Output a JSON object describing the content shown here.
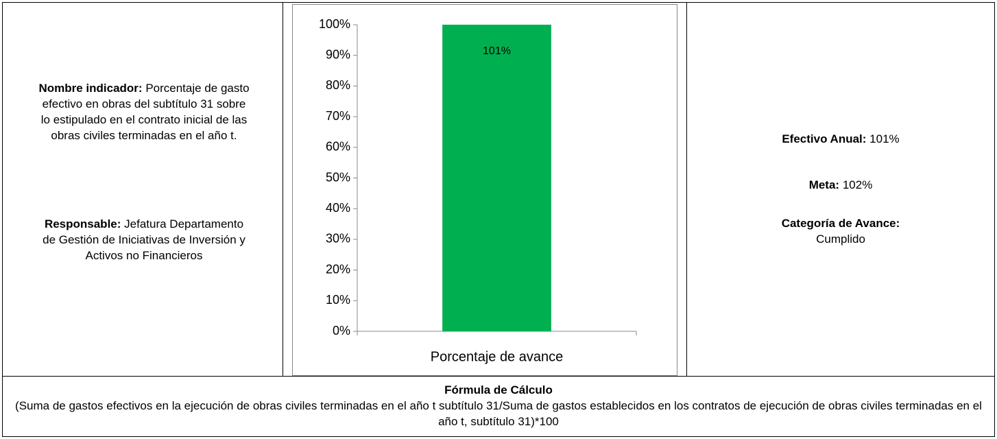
{
  "left": {
    "name_label": "Nombre indicador:",
    "name": "Porcentaje de gasto efectivo en obras del subtítulo 31 sobre lo estipulado en el contrato inicial de las obras civiles terminadas en el año t.",
    "responsible_label": "Responsable:",
    "responsible": "Jefatura Departamento de Gestión de Iniciativas de Inversión y Activos no Financieros"
  },
  "right": {
    "annual_label": "Efectivo Anual:",
    "annual": "101%",
    "goal_label": "Meta:",
    "goal": "102%",
    "category_label": "Categoría de Avance:",
    "category": "Cumplido"
  },
  "formula": {
    "title": "Fórmula de Cálculo",
    "text": "(Suma de gastos efectivos en la ejecución de obras civiles terminadas en el año t subtítulo 31/Suma de gastos establecidos en los contratos de ejecución de obras civiles terminadas en el año t, subtítulo 31)*100"
  },
  "chart_data": {
    "type": "bar",
    "categories": [
      "Porcentaje de avance"
    ],
    "values": [
      101
    ],
    "value_labels": [
      "101%"
    ],
    "color": "#00b050",
    "ylim": [
      0,
      100
    ],
    "yticks": [
      {
        "value": 0,
        "label": "0%"
      },
      {
        "value": 10,
        "label": "10%"
      },
      {
        "value": 20,
        "label": "20%"
      },
      {
        "value": 30,
        "label": "30%"
      },
      {
        "value": 40,
        "label": "40%"
      },
      {
        "value": 50,
        "label": "50%"
      },
      {
        "value": 60,
        "label": "60%"
      },
      {
        "value": 70,
        "label": "70%"
      },
      {
        "value": 80,
        "label": "80%"
      },
      {
        "value": 90,
        "label": "90%"
      },
      {
        "value": 100,
        "label": "100%"
      }
    ]
  }
}
